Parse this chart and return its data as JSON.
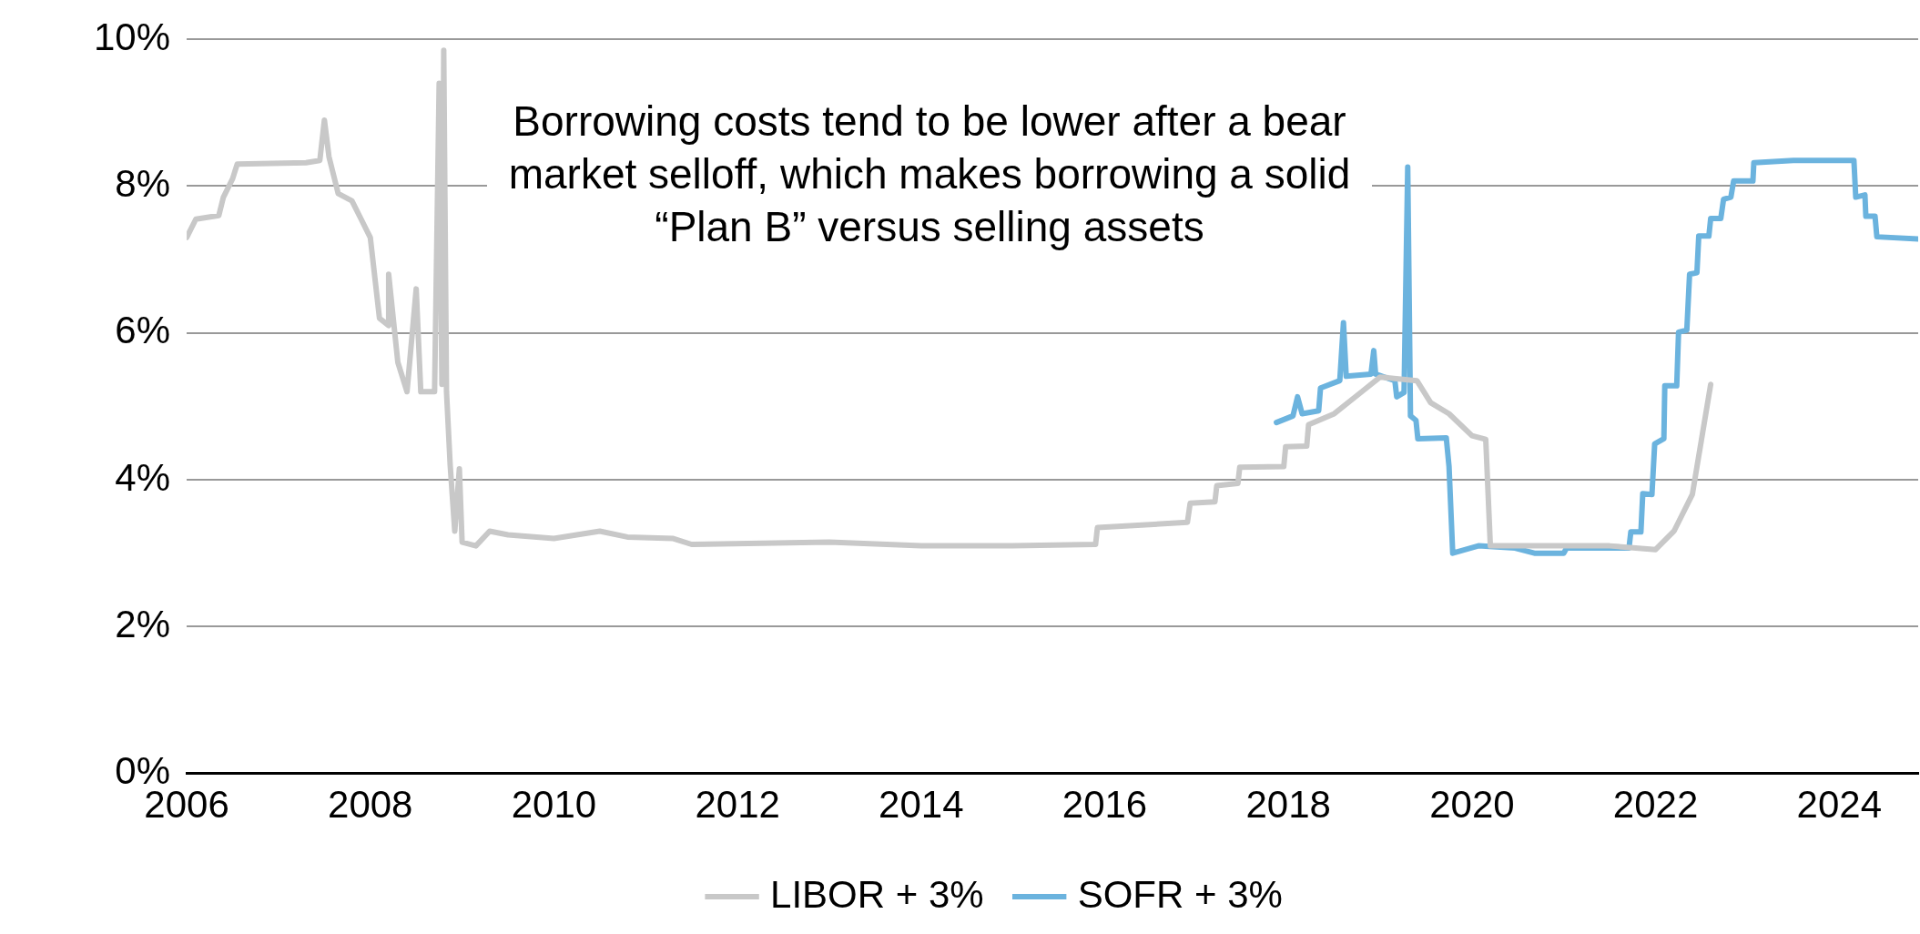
{
  "chart_data": {
    "type": "line",
    "annotations": [
      "Borrowing costs tend to be lower after a bear market selloff, which makes borrowing a solid “Plan B” versus selling assets"
    ],
    "xlim": [
      2006,
      2024.86
    ],
    "xticks": [
      2006,
      2008,
      2010,
      2012,
      2014,
      2016,
      2018,
      2020,
      2022,
      2024
    ],
    "ylim": [
      0,
      10
    ],
    "yticks": [
      {
        "value": 0,
        "label": "0%"
      },
      {
        "value": 2,
        "label": "2%"
      },
      {
        "value": 4,
        "label": "4%"
      },
      {
        "value": 6,
        "label": "6%"
      },
      {
        "value": 8,
        "label": "8%"
      },
      {
        "value": 10,
        "label": "10%"
      }
    ],
    "grid": "y",
    "legend": "bottom",
    "marker": "none",
    "line_style": "solid",
    "series": [
      {
        "name": "LIBOR + 3%",
        "color": "#c8c8c8",
        "x": [
          2006.0,
          2006.1,
          2006.35,
          2006.4,
          2006.5,
          2006.55,
          2007.3,
          2007.45,
          2007.5,
          2007.55,
          2007.65,
          2007.8,
          2007.9,
          2008.0,
          2008.1,
          2008.2,
          2008.2,
          2008.3,
          2008.4,
          2008.5,
          2008.55,
          2008.7,
          2008.75,
          2008.78,
          2008.8,
          2008.83,
          2008.87,
          2008.92,
          2008.97,
          2009.0,
          2009.15,
          2009.3,
          2009.5,
          2010.0,
          2010.5,
          2010.8,
          2011.3,
          2011.5,
          2013.0,
          2014.0,
          2015.0,
          2015.9,
          2015.92,
          2016.9,
          2016.93,
          2017.2,
          2017.22,
          2017.45,
          2017.47,
          2017.95,
          2017.97,
          2018.2,
          2018.22,
          2018.5,
          2018.8,
          2019.0,
          2019.4,
          2019.55,
          2019.75,
          2020.0,
          2020.15,
          2020.2,
          2021.0,
          2021.5,
          2022.0,
          2022.2,
          2022.4,
          2022.5,
          2022.6
        ],
        "values": [
          7.3,
          7.55,
          7.6,
          7.85,
          8.1,
          8.3,
          8.32,
          8.35,
          8.9,
          8.4,
          7.9,
          7.8,
          7.55,
          7.3,
          6.2,
          6.1,
          6.8,
          5.6,
          5.2,
          6.6,
          5.2,
          5.2,
          9.4,
          5.3,
          9.85,
          5.2,
          4.2,
          3.3,
          4.15,
          3.15,
          3.1,
          3.3,
          3.25,
          3.2,
          3.3,
          3.22,
          3.2,
          3.12,
          3.15,
          3.1,
          3.1,
          3.12,
          3.35,
          3.42,
          3.68,
          3.7,
          3.92,
          3.95,
          4.17,
          4.18,
          4.45,
          4.46,
          4.75,
          4.9,
          5.2,
          5.4,
          5.35,
          5.05,
          4.9,
          4.6,
          4.55,
          3.1,
          3.1,
          3.1,
          3.05,
          3.3,
          3.8,
          4.55,
          5.3
        ]
      },
      {
        "name": "SOFR + 3%",
        "color": "#6bb3de",
        "x": [
          2017.87,
          2018.05,
          2018.1,
          2018.15,
          2018.33,
          2018.35,
          2018.56,
          2018.6,
          2018.63,
          2018.9,
          2018.93,
          2018.95,
          2019.16,
          2019.18,
          2019.26,
          2019.3,
          2019.33,
          2019.39,
          2019.41,
          2019.72,
          2019.75,
          2019.79,
          2020.07,
          2020.47,
          2020.68,
          2021.0,
          2021.03,
          2021.71,
          2021.73,
          2021.84,
          2021.86,
          2021.96,
          2021.99,
          2022.09,
          2022.1,
          2022.23,
          2022.25,
          2022.34,
          2022.37,
          2022.45,
          2022.47,
          2022.58,
          2022.6,
          2022.71,
          2022.74,
          2022.82,
          2022.85,
          2023.06,
          2023.07,
          2023.5,
          2024.16,
          2024.18,
          2024.28,
          2024.29,
          2024.39,
          2024.41,
          2024.86
        ],
        "values": [
          4.78,
          4.87,
          5.13,
          4.9,
          4.94,
          5.25,
          5.35,
          6.14,
          5.41,
          5.44,
          5.76,
          5.44,
          5.35,
          5.13,
          5.19,
          8.26,
          4.87,
          4.81,
          4.56,
          4.57,
          4.18,
          3.0,
          3.1,
          3.07,
          3.0,
          3.0,
          3.07,
          3.07,
          3.29,
          3.29,
          3.81,
          3.8,
          4.49,
          4.56,
          5.28,
          5.28,
          6.01,
          6.04,
          6.8,
          6.82,
          7.32,
          7.32,
          7.56,
          7.56,
          7.82,
          7.85,
          8.07,
          8.07,
          8.32,
          8.35,
          8.35,
          7.85,
          7.88,
          7.59,
          7.59,
          7.31,
          7.28
        ]
      }
    ]
  }
}
